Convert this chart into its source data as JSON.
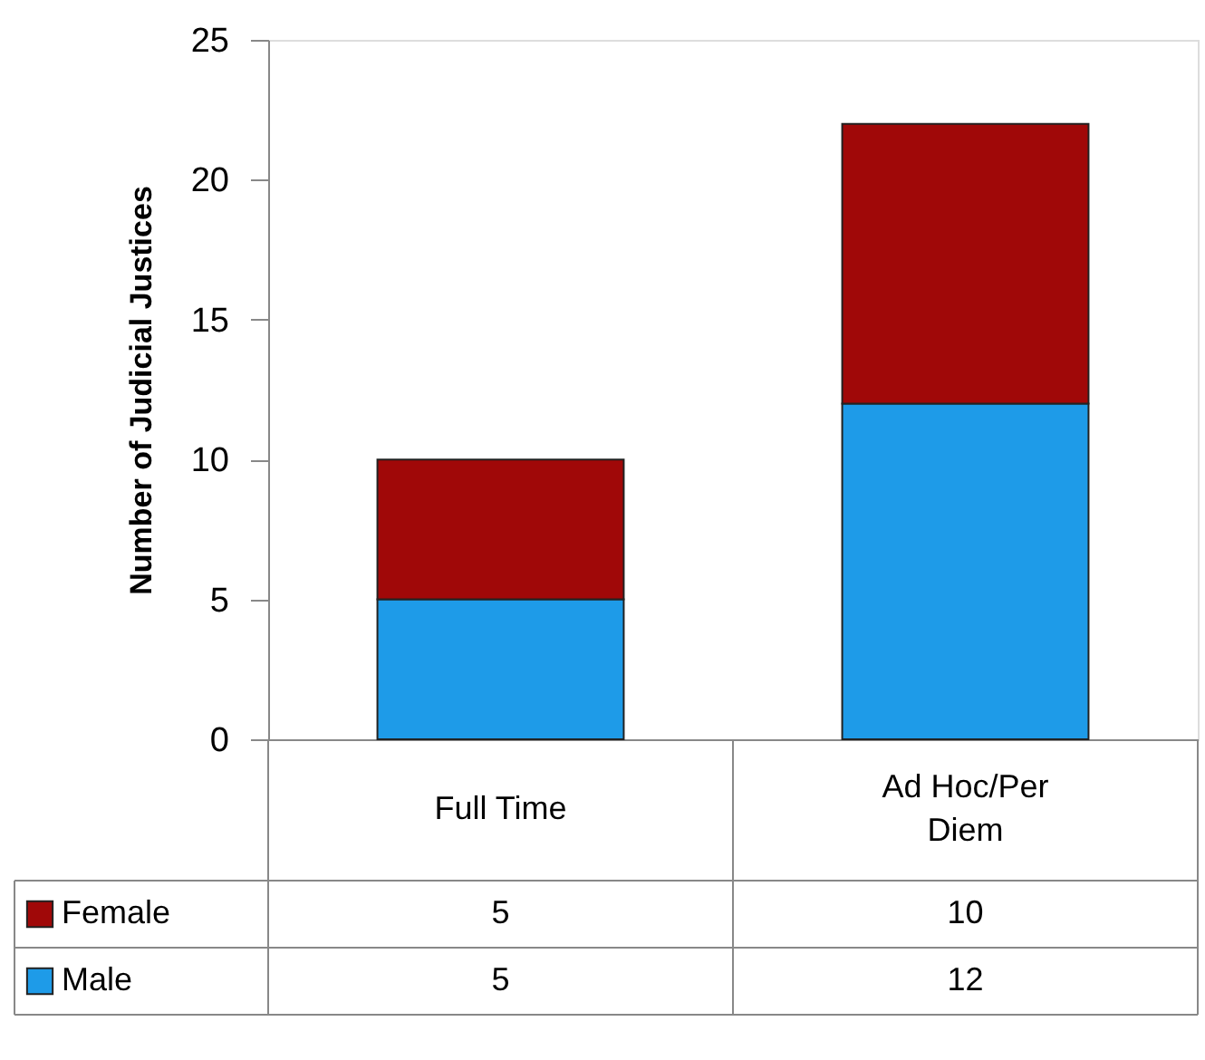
{
  "chart_data": {
    "type": "bar",
    "stacked": true,
    "ylabel": "Number of Judicial Justices",
    "categories": [
      "Full Time",
      "Ad Hoc/Per Diem"
    ],
    "series": [
      {
        "name": "Male",
        "color": "#1e9be8",
        "values": [
          5,
          12
        ]
      },
      {
        "name": "Female",
        "color": "#a00808",
        "values": [
          5,
          10
        ]
      }
    ],
    "ylim": [
      0,
      25
    ],
    "yticks": [
      0,
      5,
      10,
      15,
      20,
      25
    ],
    "grid": false,
    "data_labels": true,
    "legend": "bottom"
  }
}
